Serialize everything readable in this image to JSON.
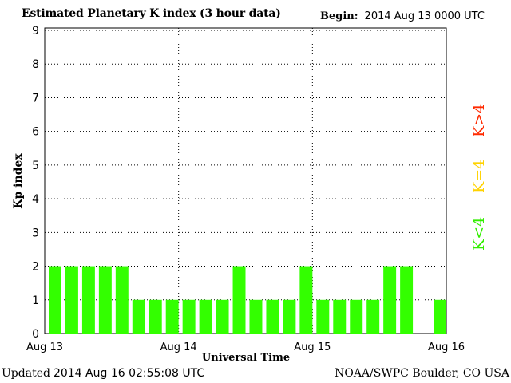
{
  "header": {
    "title": "Estimated Planetary K index (3 hour data)",
    "begin_label": "Begin:",
    "begin_value": "2014 Aug 13 0000 UTC"
  },
  "footer": {
    "updated_label": "Updated",
    "updated_value": "2014 Aug 16 02:55:08 UTC",
    "source": "NOAA/SWPC Boulder, CO USA"
  },
  "legend": {
    "high": {
      "label": "K>4",
      "color": "#ff2a00"
    },
    "mid": {
      "label": "K=4",
      "color": "#ffd200"
    },
    "low": {
      "label": "K<4",
      "color": "#33ee00"
    }
  },
  "chart_data": {
    "type": "bar",
    "xlabel": "Universal Time",
    "ylabel": "Kp index",
    "ylim": [
      0,
      9
    ],
    "yticks": [
      "0",
      "1",
      "2",
      "3",
      "4",
      "5",
      "6",
      "7",
      "8",
      "9"
    ],
    "xticks": [
      "Aug 13",
      "Aug 14",
      "Aug 15",
      "Aug 16"
    ],
    "bar_color": "#33ff00",
    "grid": "dotted",
    "values": [
      2,
      2,
      2,
      2,
      2,
      1,
      1,
      1,
      1,
      1,
      1,
      2,
      1,
      1,
      1,
      2,
      1,
      1,
      1,
      1,
      2,
      2,
      null,
      1
    ]
  }
}
